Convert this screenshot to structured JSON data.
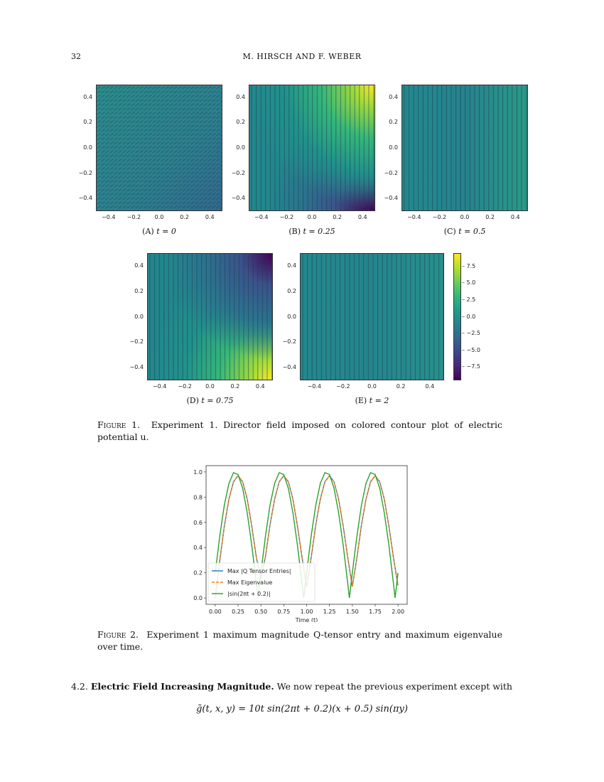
{
  "header": {
    "page_number": "32",
    "authors": "M. HIRSCH AND F. WEBER"
  },
  "figure1": {
    "panels": [
      {
        "label": "(A)",
        "caption": "t = 0",
        "field": "uniform-diagonal",
        "colors": [
          "#2d7f8e",
          "#26828e"
        ]
      },
      {
        "label": "(B)",
        "caption": "t = 0.25",
        "field": "yellow-top-right-purple-bottom-right"
      },
      {
        "label": "(C)",
        "caption": "t = 0.5",
        "field": "vertical-uniform"
      },
      {
        "label": "(D)",
        "caption": "t = 0.75",
        "field": "purple-top-right-yellow-bottom-right"
      },
      {
        "label": "(E)",
        "caption": "t = 2",
        "field": "vertical-uniform"
      }
    ],
    "axis_ticks": [
      "0.4",
      "0.2",
      "0.0",
      "−0.2",
      "−0.4"
    ],
    "x_ticks": [
      "−0.4",
      "−0.2",
      "0.0",
      "0.2",
      "0.4"
    ],
    "colorbar": {
      "ticks": [
        "7.5",
        "5.0",
        "2.5",
        "0.0",
        "−2.5",
        "−5.0",
        "−7.5"
      ],
      "colormap": "viridis",
      "range": [
        -9.5,
        9.5
      ]
    },
    "caption_label": "Figure 1.",
    "caption_text": "Experiment 1. Director field imposed on colored contour plot of electric potential u."
  },
  "chart_data": {
    "type": "line",
    "xlabel": "Time (t)",
    "ylabel": "",
    "xlim": [
      -0.1,
      2.1
    ],
    "ylim": [
      -0.05,
      1.05
    ],
    "x_ticks": [
      "0.00",
      "0.25",
      "0.50",
      "0.75",
      "1.00",
      "1.25",
      "1.50",
      "1.75",
      "2.00"
    ],
    "y_ticks": [
      "0.0",
      "0.2",
      "0.4",
      "0.6",
      "0.8",
      "1.0"
    ],
    "grid": false,
    "legend_placement": "lower-left",
    "series": [
      {
        "name": "Max |Q Tensor Entries|",
        "color": "#1f77b4",
        "style": "solid",
        "x": [
          0,
          0.05,
          0.1,
          0.15,
          0.2,
          0.25,
          0.3,
          0.35,
          0.4,
          0.45,
          0.5,
          0.55,
          0.6,
          0.65,
          0.7,
          0.75,
          0.8,
          0.85,
          0.9,
          0.95,
          1.0,
          1.05,
          1.1,
          1.15,
          1.2,
          1.25,
          1.3,
          1.35,
          1.4,
          1.45,
          1.5,
          1.55,
          1.6,
          1.65,
          1.7,
          1.75,
          1.8,
          1.85,
          1.9,
          1.95,
          2.0
        ],
        "y": [
          0,
          0.3,
          0.57,
          0.785,
          0.922,
          0.97,
          0.922,
          0.785,
          0.57,
          0.32,
          0.15,
          0.33,
          0.58,
          0.785,
          0.922,
          0.97,
          0.922,
          0.785,
          0.57,
          0.32,
          0.09,
          0.32,
          0.58,
          0.785,
          0.922,
          0.97,
          0.922,
          0.785,
          0.57,
          0.32,
          0.09,
          0.32,
          0.58,
          0.785,
          0.922,
          0.97,
          0.922,
          0.785,
          0.57,
          0.32,
          0.1
        ]
      },
      {
        "name": "Max Eigenvalue",
        "color": "#ff7f0e",
        "style": "dashed",
        "x": [
          0,
          0.05,
          0.1,
          0.15,
          0.2,
          0.25,
          0.3,
          0.35,
          0.4,
          0.45,
          0.5,
          0.55,
          0.6,
          0.65,
          0.7,
          0.75,
          0.8,
          0.85,
          0.9,
          0.95,
          1.0,
          1.05,
          1.1,
          1.15,
          1.2,
          1.25,
          1.3,
          1.35,
          1.4,
          1.45,
          1.5,
          1.55,
          1.6,
          1.65,
          1.7,
          1.75,
          1.8,
          1.85,
          1.9,
          1.95,
          2.0
        ],
        "y": [
          0,
          0.3,
          0.57,
          0.785,
          0.922,
          0.97,
          0.922,
          0.785,
          0.57,
          0.32,
          0.15,
          0.33,
          0.58,
          0.785,
          0.922,
          0.97,
          0.922,
          0.785,
          0.57,
          0.32,
          0.09,
          0.32,
          0.58,
          0.785,
          0.922,
          0.97,
          0.922,
          0.785,
          0.57,
          0.32,
          0.09,
          0.32,
          0.58,
          0.785,
          0.922,
          0.97,
          0.922,
          0.785,
          0.57,
          0.32,
          0.1
        ]
      },
      {
        "name": "|sin(2πt + 0.2)|",
        "color": "#2ca02c",
        "style": "solid",
        "x": [
          0,
          0.05,
          0.1,
          0.15,
          0.2,
          0.25,
          0.3,
          0.35,
          0.4,
          0.45,
          0.468,
          0.5,
          0.55,
          0.6,
          0.65,
          0.7,
          0.75,
          0.8,
          0.85,
          0.9,
          0.95,
          0.968,
          1.0,
          1.05,
          1.1,
          1.15,
          1.2,
          1.25,
          1.3,
          1.35,
          1.4,
          1.45,
          1.468,
          1.5,
          1.55,
          1.6,
          1.65,
          1.7,
          1.75,
          1.8,
          1.85,
          1.9,
          1.95,
          1.968,
          2.0
        ],
        "y": [
          0.199,
          0.492,
          0.737,
          0.91,
          0.994,
          0.98,
          0.87,
          0.676,
          0.418,
          0.114,
          0,
          0.199,
          0.492,
          0.737,
          0.91,
          0.994,
          0.98,
          0.87,
          0.676,
          0.418,
          0.114,
          0,
          0.199,
          0.492,
          0.737,
          0.91,
          0.994,
          0.98,
          0.87,
          0.676,
          0.418,
          0.114,
          0,
          0.199,
          0.492,
          0.737,
          0.91,
          0.994,
          0.98,
          0.87,
          0.676,
          0.418,
          0.114,
          0,
          0.199
        ]
      }
    ]
  },
  "figure2": {
    "caption_label": "Figure 2.",
    "caption_text": "Experiment 1 maximum magnitude Q-tensor entry and maximum eigenvalue over time."
  },
  "section": {
    "number": "4.2.",
    "title": "Electric Field Increasing Magnitude.",
    "text": "We now repeat the previous experiment except with",
    "equation": "g̃(t, x, y) = 10t sin(2πt + 0.2)(x + 0.5) sin(πy)"
  }
}
